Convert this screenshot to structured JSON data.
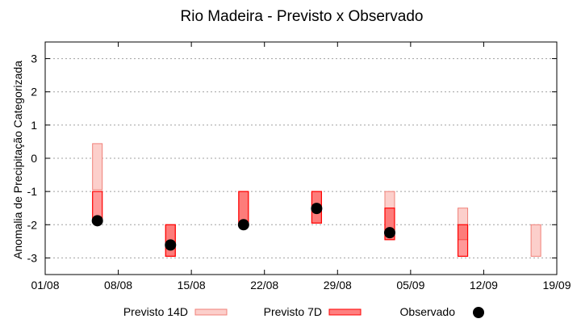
{
  "chart_data": {
    "type": "range-bar",
    "title": "Rio Madeira - Previsto x Observado",
    "xlabel": "",
    "ylabel": "Anomalia de Precipitação Categorizada",
    "ylim": [
      -3.5,
      3.5
    ],
    "yticks": [
      3,
      2,
      1,
      0,
      -1,
      -2,
      -3
    ],
    "yticklabels": [
      "3",
      "2",
      "1",
      "0",
      "-1",
      "-2",
      "-3"
    ],
    "xticklabels": [
      "01/08",
      "08/08",
      "15/08",
      "22/08",
      "29/08",
      "05/09",
      "12/09",
      "19/09"
    ],
    "xlim": [
      "01/08",
      "19/09"
    ],
    "grid": "horizontal dotted",
    "legend_position": "bottom",
    "series": [
      {
        "name": "Previsto 14D",
        "color": "#fccfcb",
        "edge": "#f08078",
        "points": [
          {
            "date": "06/08",
            "top": 0.44,
            "bottom": -0.95
          },
          {
            "date": "13/08",
            "top": -2.0,
            "bottom": -2.95
          },
          {
            "date": "20/08",
            "top": -1.0,
            "bottom": -2.0
          },
          {
            "date": "27/08",
            "top": -1.0,
            "bottom": -1.95
          },
          {
            "date": "03/09",
            "top": -1.0,
            "bottom": -2.45
          },
          {
            "date": "10/09",
            "top": -1.5,
            "bottom": -2.45
          },
          {
            "date": "17/09",
            "top": -2.0,
            "bottom": -2.95
          }
        ]
      },
      {
        "name": "Previsto 7D",
        "color": "#ff0000",
        "edge": "#ff0000",
        "points": [
          {
            "date": "06/08",
            "top": -1.0,
            "bottom": -1.9
          },
          {
            "date": "13/08",
            "top": -2.0,
            "bottom": -2.95
          },
          {
            "date": "20/08",
            "top": -1.0,
            "bottom": -2.0
          },
          {
            "date": "27/08",
            "top": -1.0,
            "bottom": -1.95
          },
          {
            "date": "03/09",
            "top": -1.5,
            "bottom": -2.45
          },
          {
            "date": "10/09",
            "top": -2.0,
            "bottom": -2.95
          }
        ]
      },
      {
        "name": "Observado",
        "color": "#000000",
        "points": [
          {
            "date": "06/08",
            "value": -1.88
          },
          {
            "date": "13/08",
            "value": -2.61
          },
          {
            "date": "20/08",
            "value": -2.0
          },
          {
            "date": "27/08",
            "value": -1.51
          },
          {
            "date": "03/09",
            "value": -2.24
          }
        ]
      }
    ]
  }
}
